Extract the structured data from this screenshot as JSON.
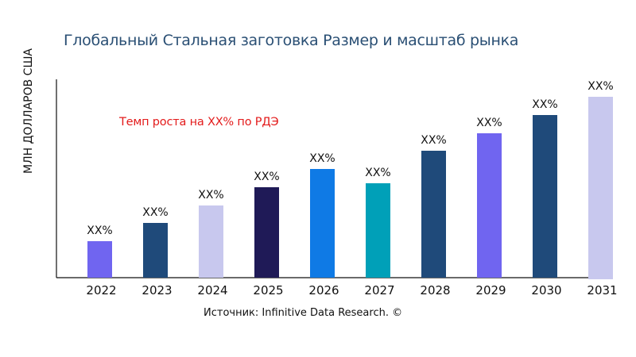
{
  "chart_data": {
    "type": "bar",
    "title": "Глобальный Стальная заготовка Размер и масштаб рынка",
    "xlabel": "",
    "ylabel": "МЛН ДОЛЛАРОВ США",
    "categories": [
      "2022",
      "2023",
      "2024",
      "2025",
      "2026",
      "2027",
      "2028",
      "2029",
      "2030",
      "2031"
    ],
    "values": [
      46,
      69,
      91,
      114,
      137,
      119,
      160,
      182,
      205,
      228
    ],
    "data_labels": [
      "XX%",
      "XX%",
      "XX%",
      "XX%",
      "XX%",
      "XX%",
      "XX%",
      "XX%",
      "XX%",
      "XX%"
    ],
    "colors": [
      "#7065f0",
      "#1f4a7a",
      "#c8c8ee",
      "#1f1a57",
      "#0f7ae5",
      "#00a0b8",
      "#1f4a7a",
      "#7065f0",
      "#1f4a7a",
      "#c8c8ee"
    ],
    "ylim": [
      0,
      250
    ],
    "grid": false,
    "y_ticks_shown": false,
    "annotation": "Темп роста на XX% по РДЭ",
    "annotation_color": "#e31b1b",
    "source": "Источник: Infinitive Data Research. ©"
  }
}
